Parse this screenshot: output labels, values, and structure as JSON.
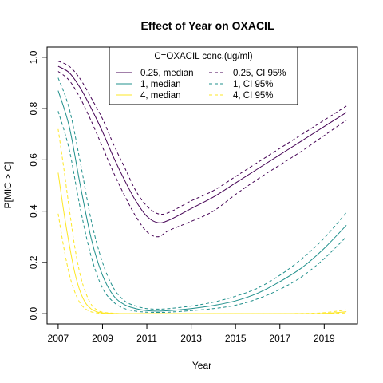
{
  "chart_data": {
    "type": "line",
    "title": "Effect of Year on OXACIL",
    "xlabel": "Year",
    "ylabel": "P[MIC > C]",
    "xlim": [
      2006.5,
      2020.5
    ],
    "ylim": [
      -0.04,
      1.04
    ],
    "x_ticks": [
      2007,
      2009,
      2011,
      2013,
      2015,
      2017,
      2019
    ],
    "y_ticks": [
      0.0,
      0.2,
      0.4,
      0.6,
      0.8,
      1.0
    ],
    "y_tick_labels": [
      "0.0",
      "0.2",
      "0.4",
      "0.6",
      "0.8",
      "1.0"
    ],
    "grid": false,
    "legend": {
      "title": "C=OXACIL conc.(ug/ml)",
      "placement": "top-center",
      "entries": [
        {
          "label": "0.25, median",
          "color": "#440154",
          "dash": false
        },
        {
          "label": "0.25, CI 95%",
          "color": "#440154",
          "dash": true
        },
        {
          "label": "1, median",
          "color": "#21908C",
          "dash": false
        },
        {
          "label": "1, CI 95%",
          "color": "#21908C",
          "dash": true
        },
        {
          "label": "4, median",
          "color": "#FDE725",
          "dash": false
        },
        {
          "label": "4, CI 95%",
          "color": "#FDE725",
          "dash": true
        }
      ]
    },
    "series": [
      {
        "name": "0.25, median",
        "color": "#440154",
        "dash": false,
        "x": [
          2007,
          2007.5,
          2008,
          2008.5,
          2009,
          2009.5,
          2010,
          2010.5,
          2011,
          2011.5,
          2012,
          2013,
          2014,
          2015,
          2016,
          2017,
          2018,
          2019,
          2020
        ],
        "y": [
          0.965,
          0.94,
          0.88,
          0.8,
          0.71,
          0.61,
          0.52,
          0.44,
          0.38,
          0.355,
          0.365,
          0.41,
          0.455,
          0.51,
          0.565,
          0.62,
          0.675,
          0.73,
          0.785
        ]
      },
      {
        "name": "0.25, CI 95%",
        "color": "#440154",
        "dash": true,
        "x": [
          2007,
          2007.5,
          2008,
          2008.5,
          2009,
          2009.5,
          2010,
          2010.5,
          2011,
          2011.5,
          2012,
          2013,
          2014,
          2015,
          2016,
          2017,
          2018,
          2019,
          2020
        ],
        "y": [
          0.985,
          0.965,
          0.915,
          0.84,
          0.76,
          0.66,
          0.57,
          0.48,
          0.42,
          0.39,
          0.395,
          0.44,
          0.48,
          0.535,
          0.59,
          0.645,
          0.7,
          0.755,
          0.81
        ]
      },
      {
        "name": "0.25, CI 95%",
        "color": "#440154",
        "dash": true,
        "x": [
          2007,
          2007.5,
          2008,
          2008.5,
          2009,
          2009.5,
          2010,
          2010.5,
          2011,
          2011.5,
          2012,
          2013,
          2014,
          2015,
          2016,
          2017,
          2018,
          2019,
          2020
        ],
        "y": [
          0.945,
          0.91,
          0.84,
          0.75,
          0.65,
          0.55,
          0.46,
          0.38,
          0.32,
          0.3,
          0.325,
          0.36,
          0.4,
          0.465,
          0.525,
          0.58,
          0.635,
          0.695,
          0.755
        ]
      },
      {
        "name": "1, median",
        "color": "#21908C",
        "dash": false,
        "x": [
          2007,
          2007.5,
          2008,
          2008.5,
          2009,
          2009.5,
          2010,
          2010.5,
          2011,
          2011.5,
          2012,
          2013,
          2014,
          2015,
          2016,
          2017,
          2018,
          2019,
          2020
        ],
        "y": [
          0.87,
          0.73,
          0.5,
          0.29,
          0.15,
          0.07,
          0.035,
          0.02,
          0.012,
          0.01,
          0.012,
          0.02,
          0.032,
          0.05,
          0.08,
          0.125,
          0.18,
          0.255,
          0.345
        ]
      },
      {
        "name": "1, CI 95%",
        "color": "#21908C",
        "dash": true,
        "x": [
          2007,
          2007.5,
          2008,
          2008.5,
          2009,
          2009.5,
          2010,
          2010.5,
          2011,
          2011.5,
          2012,
          2013,
          2014,
          2015,
          2016,
          2017,
          2018,
          2019,
          2020
        ],
        "y": [
          0.92,
          0.8,
          0.59,
          0.36,
          0.2,
          0.1,
          0.05,
          0.03,
          0.02,
          0.018,
          0.02,
          0.03,
          0.045,
          0.068,
          0.1,
          0.15,
          0.215,
          0.295,
          0.395
        ]
      },
      {
        "name": "1, CI 95%",
        "color": "#21908C",
        "dash": true,
        "x": [
          2007,
          2007.5,
          2008,
          2008.5,
          2009,
          2009.5,
          2010,
          2010.5,
          2011,
          2011.5,
          2012,
          2013,
          2014,
          2015,
          2016,
          2017,
          2018,
          2019,
          2020
        ],
        "y": [
          0.79,
          0.64,
          0.41,
          0.22,
          0.1,
          0.045,
          0.02,
          0.01,
          0.006,
          0.005,
          0.006,
          0.012,
          0.02,
          0.033,
          0.058,
          0.095,
          0.145,
          0.215,
          0.3
        ]
      },
      {
        "name": "4, median",
        "color": "#FDE725",
        "dash": false,
        "x": [
          2007,
          2007.25,
          2007.5,
          2007.75,
          2008,
          2008.25,
          2008.5,
          2008.75,
          2009,
          2009.5,
          2010,
          2011,
          2012,
          2014,
          2016,
          2018,
          2019,
          2020
        ],
        "y": [
          0.55,
          0.4,
          0.27,
          0.16,
          0.085,
          0.04,
          0.018,
          0.007,
          0.003,
          0.001,
          0.0,
          0.0,
          0.0,
          0.0,
          0.0,
          0.0,
          0.001,
          0.008
        ]
      },
      {
        "name": "4, CI 95%",
        "color": "#FDE725",
        "dash": true,
        "x": [
          2007,
          2007.25,
          2007.5,
          2007.75,
          2008,
          2008.25,
          2008.5,
          2008.75,
          2009,
          2009.5,
          2010,
          2011,
          2012,
          2014,
          2016,
          2018,
          2019,
          2020
        ],
        "y": [
          0.72,
          0.57,
          0.41,
          0.26,
          0.15,
          0.08,
          0.035,
          0.015,
          0.006,
          0.002,
          0.0,
          0.0,
          0.0,
          0.0,
          0.0,
          0.001,
          0.004,
          0.015
        ]
      },
      {
        "name": "4, CI 95%",
        "color": "#FDE725",
        "dash": true,
        "x": [
          2007,
          2007.25,
          2007.5,
          2007.75,
          2008,
          2008.25,
          2008.5,
          2008.75,
          2009,
          2009.5,
          2010,
          2011,
          2012,
          2014,
          2016,
          2018,
          2019,
          2020
        ],
        "y": [
          0.39,
          0.26,
          0.155,
          0.085,
          0.04,
          0.018,
          0.007,
          0.003,
          0.001,
          0.0,
          0.0,
          0.0,
          0.0,
          0.0,
          0.0,
          0.0,
          0.0,
          0.003
        ]
      }
    ]
  }
}
